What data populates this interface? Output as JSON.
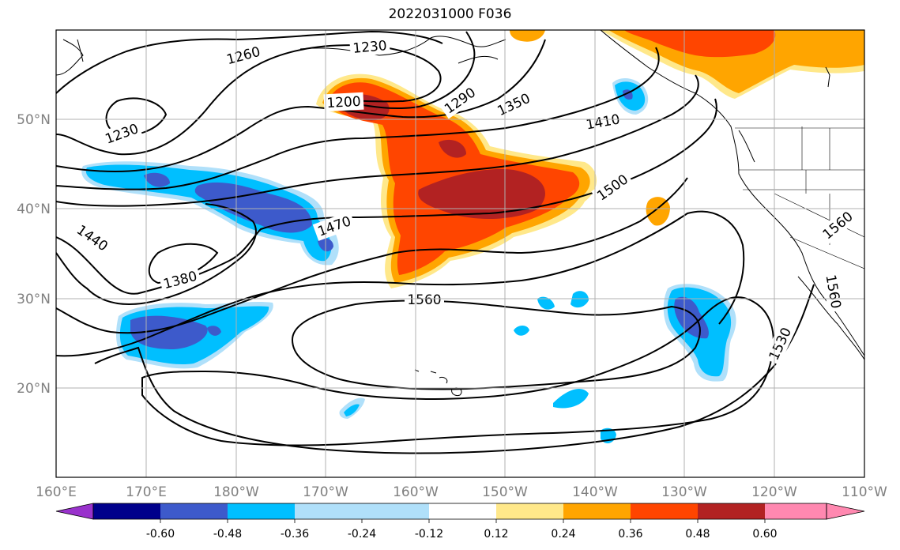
{
  "title": "2022031000 F036",
  "x_ticks": [
    "160°E",
    "170°E",
    "180°W",
    "170°W",
    "160°W",
    "150°W",
    "140°W",
    "130°W",
    "120°W",
    "110°W"
  ],
  "y_ticks": [
    "50°N",
    "40°N",
    "30°N",
    "20°N"
  ],
  "colorbar": {
    "levels": [
      "-0.60",
      "-0.48",
      "-0.36",
      "-0.24",
      "-0.12",
      "0.12",
      "0.24",
      "0.36",
      "0.48",
      "0.60"
    ],
    "colors": [
      "#9932cc",
      "#00008b",
      "#3d5acb",
      "#00bfff",
      "#b0e0fa",
      "#ffffff",
      "#ffe88a",
      "#ffa500",
      "#ff4500",
      "#b22222",
      "#ff88b0"
    ]
  },
  "contour_labels": [
    {
      "text": "1230"
    },
    {
      "text": "1260"
    },
    {
      "text": "1200"
    },
    {
      "text": "1230"
    },
    {
      "text": "1290"
    },
    {
      "text": "1350"
    },
    {
      "text": "1410"
    },
    {
      "text": "1500"
    },
    {
      "text": "1470"
    },
    {
      "text": "1440"
    },
    {
      "text": "1380"
    },
    {
      "text": "1560"
    },
    {
      "text": "1560"
    },
    {
      "text": "1530"
    },
    {
      "text": "1560"
    }
  ]
}
